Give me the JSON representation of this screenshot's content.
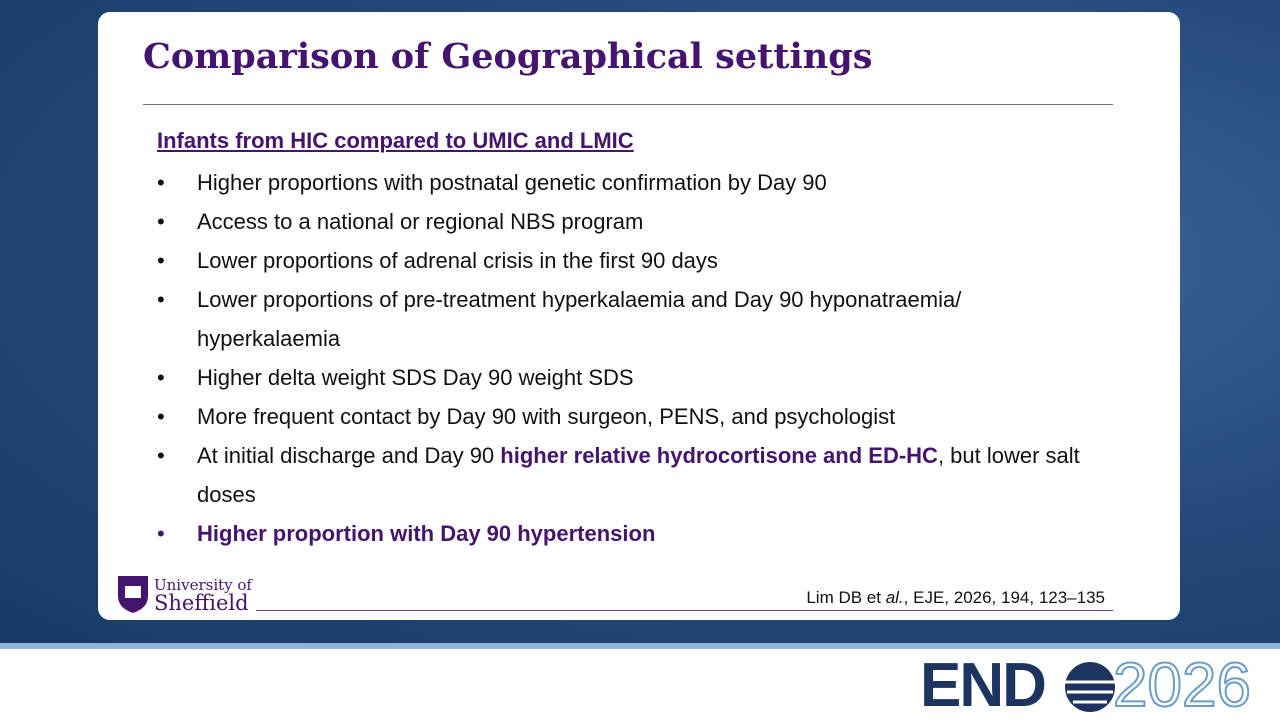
{
  "title": "Comparison of Geographical settings",
  "subheading": "Infants from HIC compared to UMIC and LMIC",
  "bullets": [
    {
      "runs": [
        {
          "text": "Higher proportions with postnatal genetic confirmation by Day 90",
          "bold": false
        }
      ]
    },
    {
      "runs": [
        {
          "text": "Access to a national or regional NBS program",
          "bold": false
        }
      ]
    },
    {
      "runs": [
        {
          "text": "Lower proportions of adrenal crisis in the first 90 days",
          "bold": false
        }
      ]
    },
    {
      "runs": [
        {
          "text": "Lower proportions of pre-treatment hyperkalaemia and Day 90 hyponatraemia/ hyperkalaemia",
          "bold": false
        }
      ]
    },
    {
      "runs": [
        {
          "text": "Higher delta weight SDS Day 90 weight SDS",
          "bold": false
        }
      ]
    },
    {
      "runs": [
        {
          "text": "More frequent contact by Day 90 with surgeon, PENS, and psychologist",
          "bold": false
        }
      ]
    },
    {
      "runs": [
        {
          "text": "At initial discharge and Day 90 ",
          "bold": false
        },
        {
          "text": "higher relative hydrocortisone and ED-HC",
          "bold": true
        },
        {
          "text": ", but lower salt doses",
          "bold": false
        }
      ]
    },
    {
      "runs": [
        {
          "text": "Higher proportion with Day 90 hypertension",
          "bold": true
        }
      ],
      "bold_bullet": true
    }
  ],
  "citation": {
    "authors": "Lim DB et ",
    "etal": "al.",
    "rest": ", EJE,  2026, 194, 123–135"
  },
  "logo": {
    "line1": "University of",
    "line2": "Sheffield"
  },
  "event": {
    "name": "END",
    "year": "2026"
  }
}
